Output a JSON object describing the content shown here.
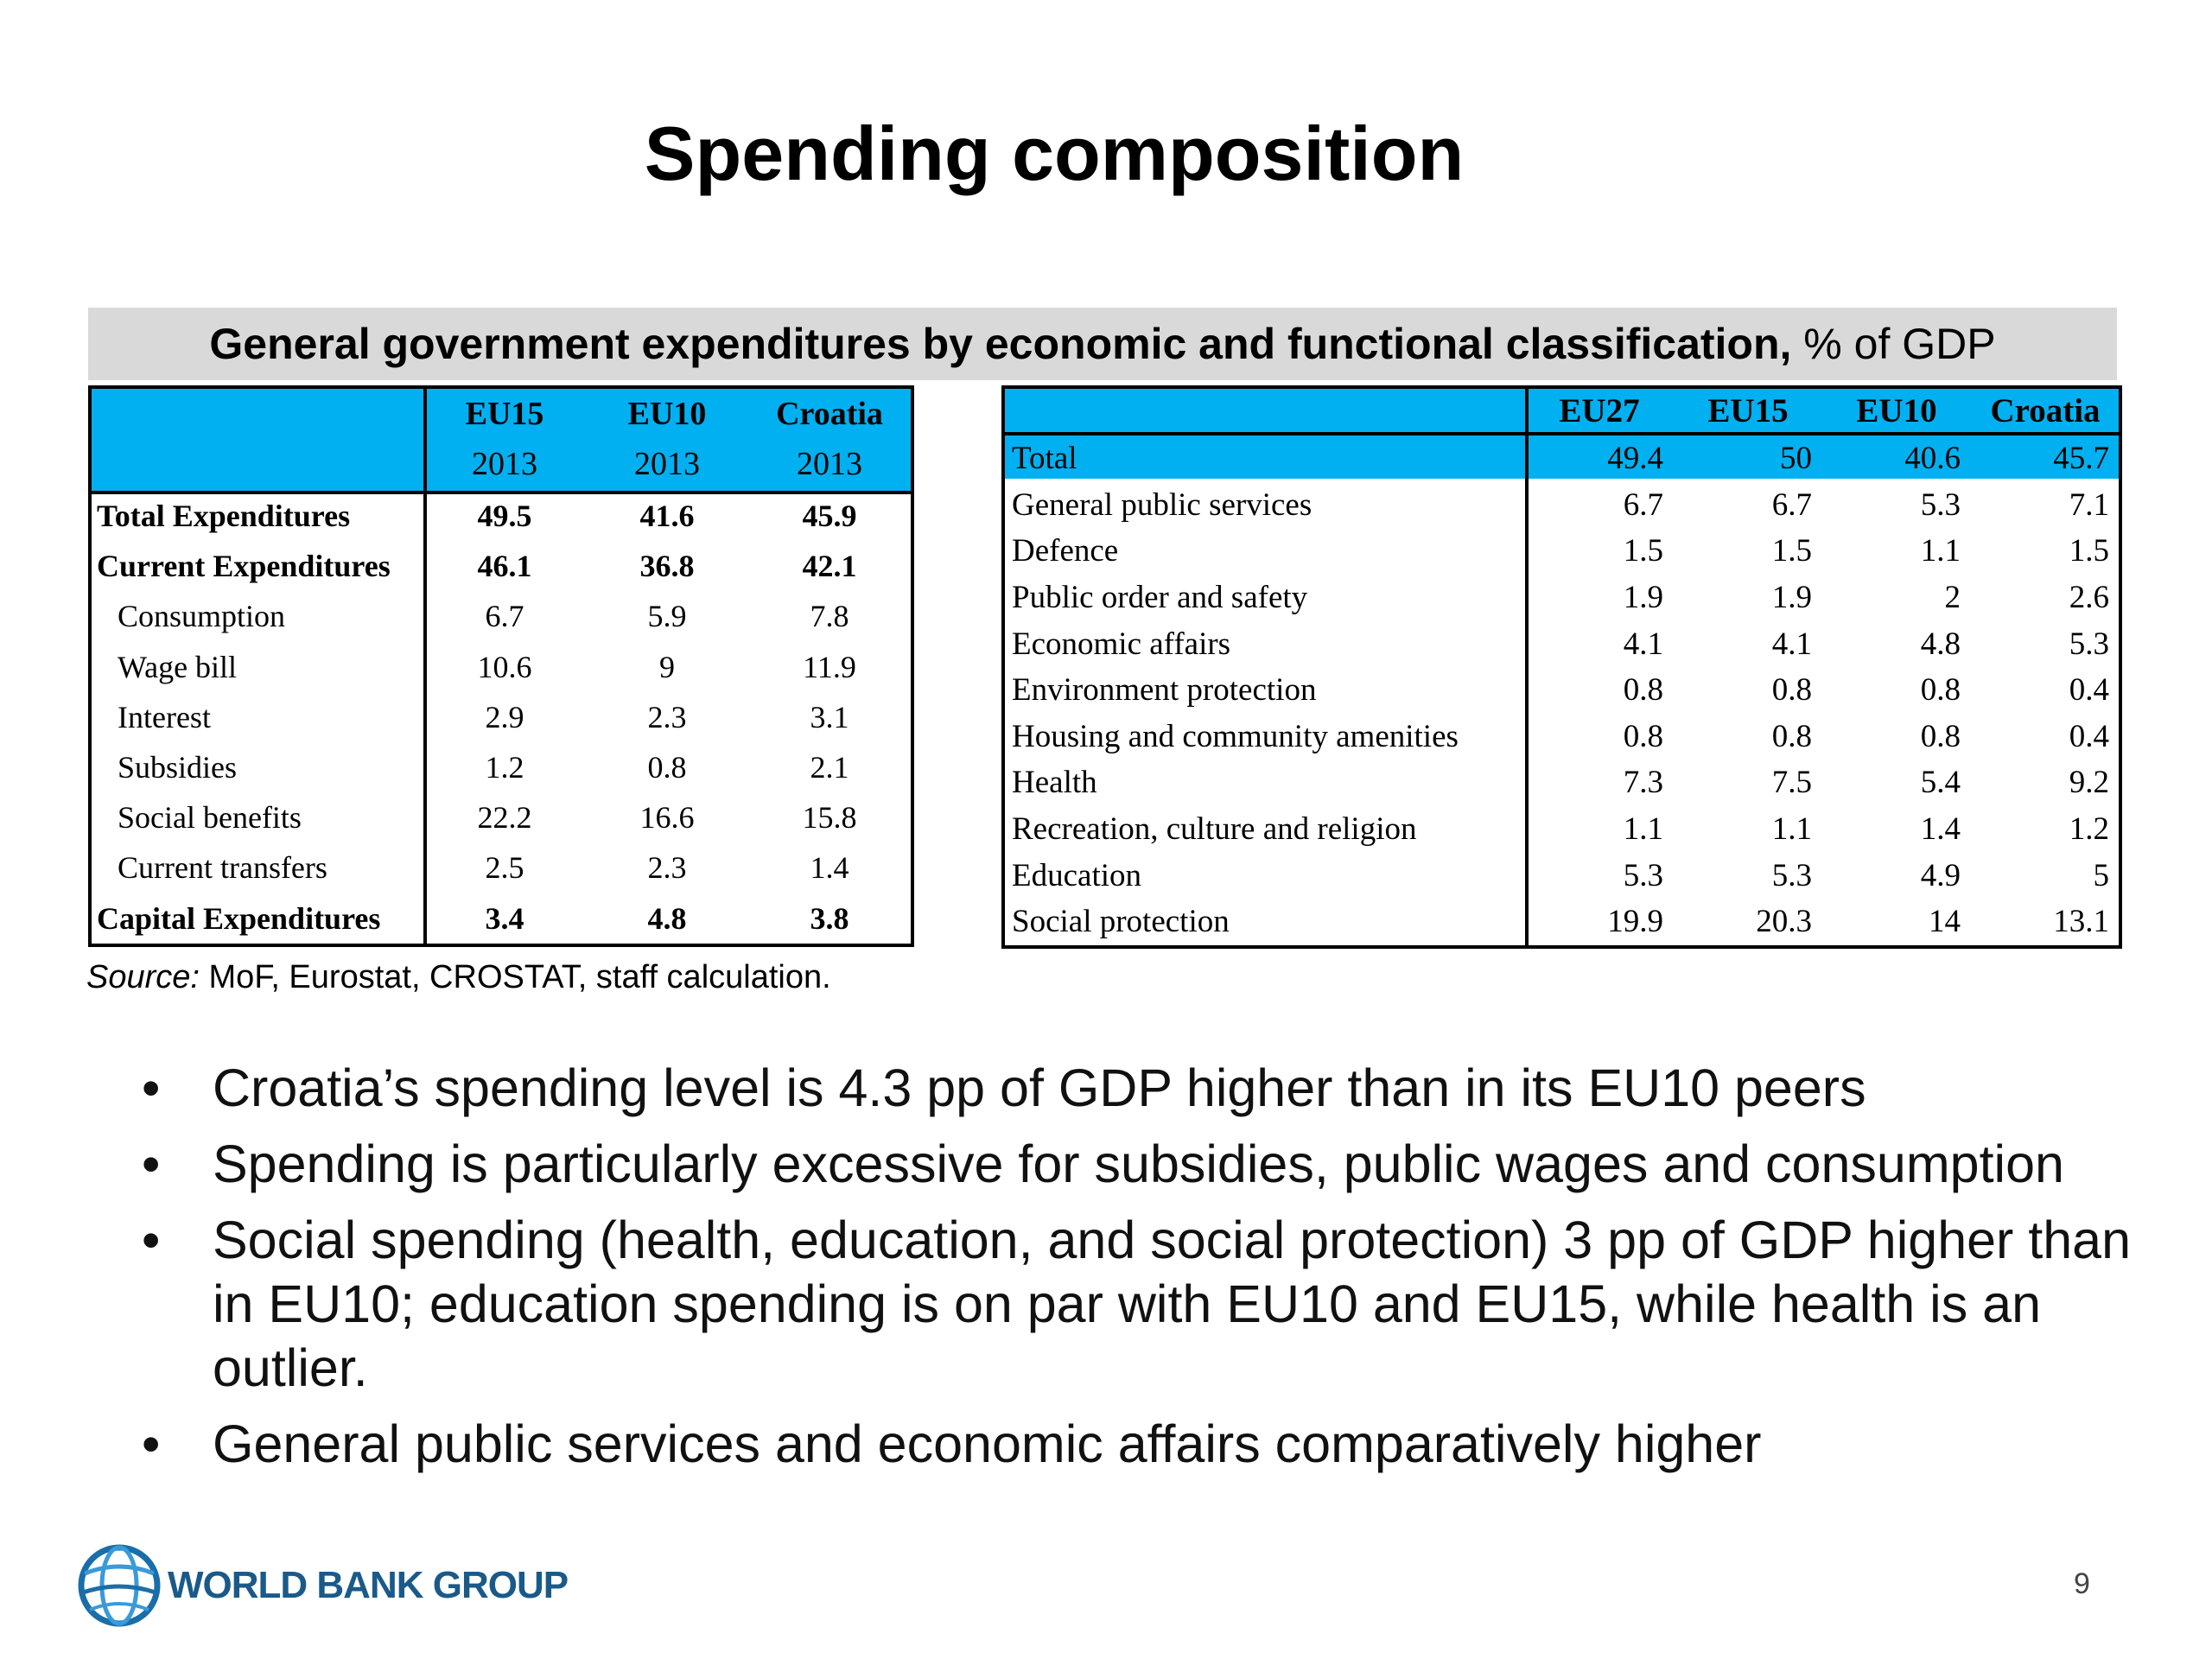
{
  "title": "Spending composition",
  "banner": {
    "bold_text": "General government expenditures by economic and functional classification,",
    "unit_text": " % of GDP"
  },
  "left_table": {
    "header_row1": [
      "",
      "EU15",
      "EU10",
      "Croatia"
    ],
    "header_row2": [
      "",
      "2013",
      "2013",
      "2013"
    ],
    "rows": [
      {
        "label": "Total Expenditures",
        "values": [
          "49.5",
          "41.6",
          "45.9"
        ],
        "bold": true
      },
      {
        "label": "Current Expenditures",
        "values": [
          "46.1",
          "36.8",
          "42.1"
        ],
        "bold": true
      },
      {
        "label": "Consumption",
        "values": [
          "6.7",
          "5.9",
          "7.8"
        ],
        "bold": false
      },
      {
        "label": "Wage bill",
        "values": [
          "10.6",
          "9",
          "11.9"
        ],
        "bold": false
      },
      {
        "label": "Interest",
        "values": [
          "2.9",
          "2.3",
          "3.1"
        ],
        "bold": false
      },
      {
        "label": "Subsidies",
        "values": [
          "1.2",
          "0.8",
          "2.1"
        ],
        "bold": false
      },
      {
        "label": "Social benefits",
        "values": [
          "22.2",
          "16.6",
          "15.8"
        ],
        "bold": false
      },
      {
        "label": "Current transfers",
        "values": [
          "2.5",
          "2.3",
          "1.4"
        ],
        "bold": false
      },
      {
        "label": "Capital Expenditures",
        "values": [
          "3.4",
          "4.8",
          "3.8"
        ],
        "bold": true
      }
    ]
  },
  "right_table": {
    "header": [
      "",
      "EU27",
      "EU15",
      "EU10",
      "Croatia"
    ],
    "rows": [
      {
        "label": "Total",
        "values": [
          "49.4",
          "50",
          "40.6",
          "45.7"
        ]
      },
      {
        "label": "General public services",
        "values": [
          "6.7",
          "6.7",
          "5.3",
          "7.1"
        ]
      },
      {
        "label": "Defence",
        "values": [
          "1.5",
          "1.5",
          "1.1",
          "1.5"
        ]
      },
      {
        "label": "Public order and safety",
        "values": [
          "1.9",
          "1.9",
          "2",
          "2.6"
        ]
      },
      {
        "label": "Economic affairs",
        "values": [
          "4.1",
          "4.1",
          "4.8",
          "5.3"
        ]
      },
      {
        "label": "Environment protection",
        "values": [
          "0.8",
          "0.8",
          "0.8",
          "0.4"
        ]
      },
      {
        "label": "Housing and community amenities",
        "values": [
          "0.8",
          "0.8",
          "0.8",
          "0.4"
        ]
      },
      {
        "label": "Health",
        "values": [
          "7.3",
          "7.5",
          "5.4",
          "9.2"
        ]
      },
      {
        "label": "Recreation, culture and religion",
        "values": [
          "1.1",
          "1.1",
          "1.4",
          "1.2"
        ]
      },
      {
        "label": "Education",
        "values": [
          "5.3",
          "5.3",
          "4.9",
          "5"
        ]
      },
      {
        "label": "Social protection",
        "values": [
          "19.9",
          "20.3",
          "14",
          "13.1"
        ]
      }
    ]
  },
  "source": {
    "label": "Source:",
    "text": " MoF, Eurostat, CROSTAT, staff calculation."
  },
  "bullets": [
    "Croatia’s spending level is 4.3 pp of GDP higher than in its EU10 peers",
    "Spending is particularly excessive for subsidies, public wages and consumption",
    "Social spending (health, education, and social protection) 3 pp of GDP higher than in EU10; education spending is on par with EU10 and EU15, while health is an outlier.",
    "General public services and economic affairs comparatively higher"
  ],
  "bullet_glyph": "•",
  "logo_text": "WORLD BANK GROUP",
  "page_number": "9",
  "colors": {
    "header_fill": "#00b0f0",
    "banner_fill": "#d9d9d9",
    "logo_blue": "#1a5a8a"
  }
}
